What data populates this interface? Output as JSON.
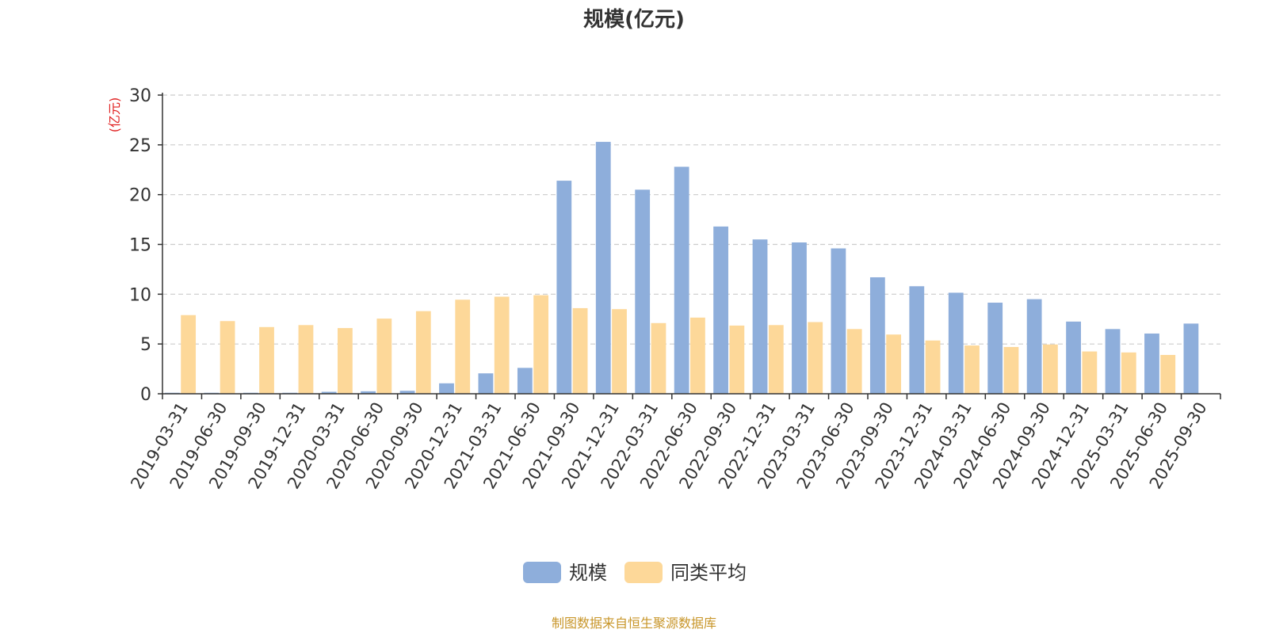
{
  "chart_data": {
    "type": "bar",
    "title": "规模(亿元)",
    "ylabel": "(亿元)",
    "xlabel": "",
    "ylim": [
      0,
      30
    ],
    "yticks": [
      0,
      5,
      10,
      15,
      20,
      25,
      30
    ],
    "grid": true,
    "legend_position": "bottom-center",
    "categories": [
      "2019-03-31",
      "2019-06-30",
      "2019-09-30",
      "2019-12-31",
      "2020-03-31",
      "2020-06-30",
      "2020-09-30",
      "2020-12-31",
      "2021-03-31",
      "2021-06-30",
      "2021-09-30",
      "2021-12-31",
      "2022-03-31",
      "2022-06-30",
      "2022-09-30",
      "2022-12-31",
      "2023-03-31",
      "2023-06-30",
      "2023-09-30",
      "2023-12-31",
      "2024-03-31",
      "2024-06-30",
      "2024-09-30",
      "2024-12-31",
      "2025-03-31",
      "2025-06-30",
      "2025-09-30"
    ],
    "series": [
      {
        "name": "规模",
        "color": "#8eaedb",
        "values": [
          0.1,
          0.1,
          0.1,
          0.1,
          0.2,
          0.25,
          0.3,
          1.05,
          2.05,
          2.6,
          21.4,
          25.3,
          20.5,
          22.8,
          16.8,
          15.5,
          15.2,
          14.6,
          11.7,
          10.8,
          10.15,
          9.15,
          9.5,
          7.25,
          6.5,
          6.05,
          7.05
        ]
      },
      {
        "name": "同类平均",
        "color": "#fdd899",
        "values": [
          7.9,
          7.3,
          6.7,
          6.9,
          6.6,
          7.55,
          8.3,
          9.45,
          9.75,
          9.9,
          8.6,
          8.5,
          7.1,
          7.65,
          6.85,
          6.9,
          7.2,
          6.5,
          5.95,
          5.35,
          4.85,
          4.7,
          4.95,
          4.25,
          4.15,
          3.9,
          null
        ]
      }
    ],
    "source_note": "制图数据来自恒生聚源数据库"
  }
}
